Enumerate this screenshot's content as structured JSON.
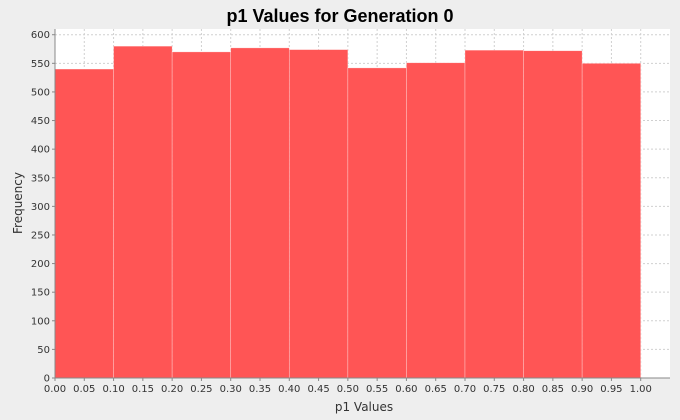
{
  "chart_data": {
    "type": "bar",
    "title": "p1 Values for Generation 0",
    "xlabel": "p1 Values",
    "ylabel": "Frequency",
    "bins": [
      {
        "start": 0.0,
        "end": 0.1,
        "value": 540
      },
      {
        "start": 0.1,
        "end": 0.2,
        "value": 580
      },
      {
        "start": 0.2,
        "end": 0.3,
        "value": 570
      },
      {
        "start": 0.3,
        "end": 0.4,
        "value": 577
      },
      {
        "start": 0.4,
        "end": 0.5,
        "value": 574
      },
      {
        "start": 0.5,
        "end": 0.6,
        "value": 542
      },
      {
        "start": 0.6,
        "end": 0.7,
        "value": 551
      },
      {
        "start": 0.7,
        "end": 0.8,
        "value": 573
      },
      {
        "start": 0.8,
        "end": 0.9,
        "value": 572
      },
      {
        "start": 0.9,
        "end": 1.0,
        "value": 550
      }
    ],
    "xlim": [
      0.0,
      1.05
    ],
    "ylim": [
      0,
      610
    ],
    "xticks": [
      "0.00",
      "0.05",
      "0.10",
      "0.15",
      "0.20",
      "0.25",
      "0.30",
      "0.35",
      "0.40",
      "0.45",
      "0.50",
      "0.55",
      "0.60",
      "0.65",
      "0.70",
      "0.75",
      "0.80",
      "0.85",
      "0.90",
      "0.95",
      "1.00"
    ],
    "yticks": [
      "0",
      "50",
      "100",
      "150",
      "200",
      "250",
      "300",
      "350",
      "400",
      "450",
      "500",
      "550",
      "600"
    ],
    "grid": true,
    "colors": {
      "bar": "#ff5555",
      "bar_edge": "#ffffff",
      "grid": "#d0d0d0",
      "plot_bg": "#ffffff",
      "page_bg": "#eeeeee",
      "axis": "#888888"
    }
  }
}
